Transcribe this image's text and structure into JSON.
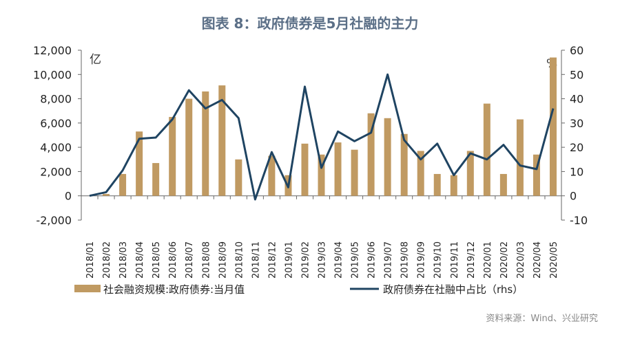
{
  "title": "图表 8：政府债券是5月社融的主力",
  "source": "资料来源：Wind、兴业研究",
  "chart_data": {
    "type": "bar+line",
    "categories": [
      "2018/01",
      "2018/02",
      "2018/03",
      "2018/04",
      "2018/05",
      "2018/06",
      "2018/07",
      "2018/08",
      "2018/09",
      "2018/10",
      "2018/11",
      "2018/12",
      "2019/01",
      "2019/02",
      "2019/03",
      "2019/04",
      "2019/05",
      "2019/06",
      "2019/07",
      "2019/08",
      "2019/09",
      "2019/10",
      "2019/11",
      "2019/12",
      "2020/01",
      "2020/02",
      "2020/03",
      "2020/04",
      "2020/05"
    ],
    "series": [
      {
        "name": "社会融资规模:政府债券:当月值",
        "type": "bar",
        "axis": "left",
        "color": "#c09a62",
        "values": [
          0,
          150,
          1800,
          5300,
          2700,
          6500,
          8000,
          8600,
          9100,
          3000,
          0,
          3300,
          1700,
          4300,
          3400,
          4400,
          3800,
          6800,
          6400,
          5100,
          3700,
          1800,
          1700,
          3700,
          7600,
          1800,
          6300,
          3400,
          11400
        ]
      },
      {
        "name": "政府债券在社融中占比（rhs）",
        "type": "line",
        "axis": "right",
        "color": "#1f4462",
        "values": [
          0,
          1.5,
          10.5,
          23.5,
          24,
          31.5,
          43.5,
          36,
          39.5,
          32,
          -1.5,
          18,
          3.5,
          45,
          11.5,
          26.5,
          22.5,
          26,
          50,
          23,
          15,
          21.5,
          8.5,
          17.5,
          15,
          21,
          12.5,
          11,
          36
        ]
      }
    ],
    "left_axis": {
      "unit": "亿",
      "ylim": [
        -2000,
        12000
      ],
      "ticks": [
        "-2,000",
        "0",
        "2,000",
        "4,000",
        "6,000",
        "8,000",
        "10,000",
        "12,000"
      ]
    },
    "right_axis": {
      "unit": "%",
      "ylim": [
        -10,
        60
      ],
      "ticks": [
        "-10",
        "0",
        "10",
        "20",
        "30",
        "40",
        "50",
        "60"
      ]
    },
    "legend": "bottom"
  }
}
